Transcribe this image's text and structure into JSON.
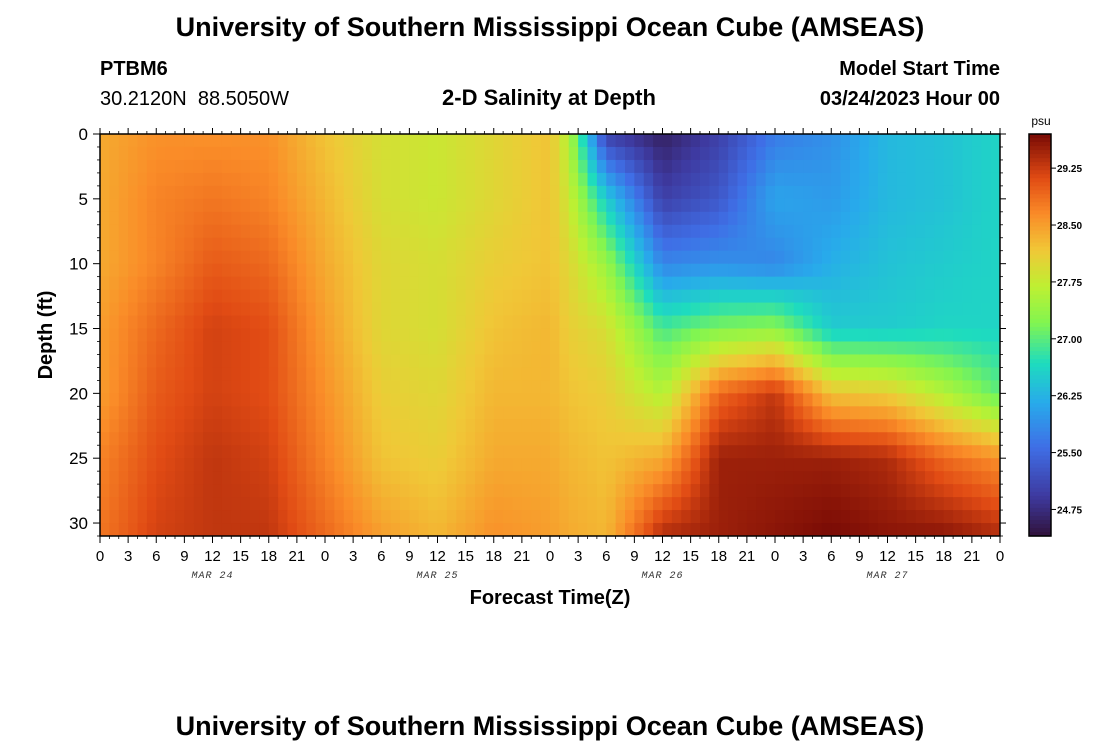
{
  "header": {
    "title": "University of Southern Mississippi Ocean Cube (AMSEAS)",
    "station_id": "PTBM6",
    "station_location": "30.2120N  88.5050W",
    "model_start_label": "Model Start Time",
    "model_start_value": "03/24/2023 Hour 00"
  },
  "footer": {
    "title": "University of Southern Mississippi Ocean Cube (AMSEAS)"
  },
  "chart_data": {
    "type": "heatmap",
    "title": "2-D Salinity at Depth",
    "xlabel": "Forecast Time(Z)",
    "ylabel": "Depth (ft)",
    "x_tick_labels": [
      "0",
      "3",
      "6",
      "9",
      "12",
      "15",
      "18",
      "21",
      "0",
      "3",
      "6",
      "9",
      "12",
      "15",
      "18",
      "21",
      "0",
      "3",
      "6",
      "9",
      "12",
      "15",
      "18",
      "21",
      "0",
      "3",
      "6",
      "9",
      "12",
      "15",
      "18",
      "21",
      "0"
    ],
    "x_day_labels": [
      {
        "label": "MAR 24",
        "hour": 12
      },
      {
        "label": "MAR 25",
        "hour": 36
      },
      {
        "label": "MAR 26",
        "hour": 60
      },
      {
        "label": "MAR 27",
        "hour": 84
      }
    ],
    "xlim": [
      0,
      96
    ],
    "x_units": "hours since model start",
    "y_ticks": [
      0,
      5,
      10,
      15,
      20,
      25,
      30
    ],
    "ylim": [
      0,
      31
    ],
    "y_inverted": true,
    "colorbar": {
      "unit": "psu",
      "ticks": [
        "29.25",
        "28.50",
        "27.75",
        "27.00",
        "26.25",
        "25.50",
        "24.75"
      ],
      "tick_values": [
        29.25,
        28.5,
        27.75,
        27.0,
        26.25,
        25.5,
        24.75
      ],
      "range": [
        24.4,
        29.7
      ]
    },
    "grid": false,
    "depth_grid_ft": [
      0,
      5,
      10,
      15,
      20,
      25,
      31
    ],
    "time_grid_hours": [
      0,
      6,
      12,
      18,
      24,
      30,
      36,
      42,
      48,
      50,
      54,
      60,
      66,
      72,
      78,
      84,
      90,
      96
    ],
    "salinity_psu": [
      [
        28.4,
        28.4,
        28.4,
        28.5,
        28.5,
        28.7,
        28.8
      ],
      [
        28.6,
        28.7,
        28.7,
        28.9,
        29.0,
        29.1,
        29.2
      ],
      [
        28.6,
        28.8,
        29.0,
        29.2,
        29.2,
        29.3,
        29.3
      ],
      [
        28.6,
        28.7,
        28.9,
        29.1,
        29.1,
        29.2,
        29.3
      ],
      [
        28.2,
        28.3,
        28.4,
        28.5,
        28.6,
        28.7,
        28.9
      ],
      [
        27.9,
        27.9,
        28.0,
        28.0,
        28.1,
        28.2,
        28.5
      ],
      [
        27.8,
        27.8,
        27.9,
        27.9,
        28.0,
        28.1,
        28.3
      ],
      [
        28.0,
        28.0,
        28.1,
        28.2,
        28.3,
        28.4,
        28.6
      ],
      [
        28.2,
        28.2,
        28.2,
        28.3,
        28.3,
        28.4,
        28.5
      ],
      [
        27.6,
        27.8,
        28.0,
        28.1,
        28.2,
        28.3,
        28.4
      ],
      [
        25.0,
        26.5,
        27.4,
        27.9,
        28.1,
        28.2,
        28.3
      ],
      [
        24.6,
        25.0,
        25.8,
        26.9,
        27.6,
        28.4,
        29.4
      ],
      [
        25.0,
        25.3,
        25.9,
        27.2,
        28.9,
        29.5,
        29.5
      ],
      [
        25.7,
        26.1,
        25.8,
        27.3,
        29.3,
        29.5,
        29.6
      ],
      [
        25.9,
        26.0,
        26.2,
        26.5,
        28.2,
        29.5,
        29.7
      ],
      [
        26.3,
        26.3,
        26.4,
        26.5,
        28.1,
        29.4,
        29.6
      ],
      [
        26.4,
        26.4,
        26.5,
        26.6,
        27.6,
        28.9,
        29.6
      ],
      [
        26.6,
        26.6,
        26.6,
        26.6,
        27.0,
        28.6,
        29.4
      ]
    ]
  }
}
